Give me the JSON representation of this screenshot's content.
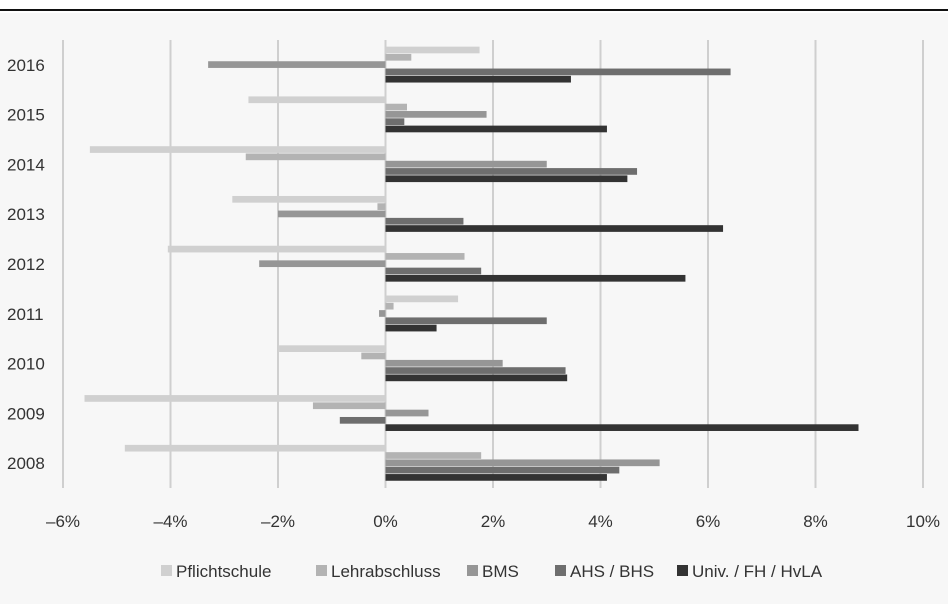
{
  "chart_data": {
    "type": "bar",
    "orientation": "horizontal",
    "categories": [
      "2016",
      "2015",
      "2014",
      "2013",
      "2012",
      "2011",
      "2010",
      "2009",
      "2008"
    ],
    "series": [
      {
        "name": "Pflichtschule",
        "color": "#d0d0d0",
        "values": [
          1.75,
          -2.55,
          -5.5,
          -2.85,
          -4.05,
          1.35,
          -1.98,
          -5.6,
          -4.85
        ]
      },
      {
        "name": "Lehrabschluss",
        "color": "#b3b3b3",
        "values": [
          0.48,
          0.4,
          -2.6,
          -0.15,
          1.47,
          0.15,
          -0.45,
          -1.35,
          1.78
        ]
      },
      {
        "name": "BMS",
        "color": "#969696",
        "values": [
          -3.3,
          1.88,
          3.0,
          -2.0,
          -2.35,
          -0.12,
          2.18,
          0.8,
          5.1
        ]
      },
      {
        "name": "AHS / BHS",
        "color": "#6e6e6e",
        "values": [
          6.42,
          0.35,
          4.68,
          1.45,
          1.78,
          3.0,
          3.35,
          -0.85,
          4.35
        ]
      },
      {
        "name": "Univ. / FH / HvLA",
        "color": "#333333",
        "values": [
          3.45,
          4.12,
          4.5,
          6.28,
          5.58,
          0.95,
          3.38,
          8.8,
          4.12
        ]
      }
    ],
    "x_ticks": [
      "–6%",
      "–4%",
      "–2%",
      "0%",
      "2%",
      "4%",
      "6%",
      "8%",
      "10%"
    ],
    "x_tick_values": [
      -6,
      -4,
      -2,
      0,
      2,
      4,
      6,
      8,
      10
    ],
    "xlim": [
      -6,
      10
    ],
    "xlabel": "",
    "ylabel": "",
    "grid": "vertical",
    "legend_position": "bottom"
  }
}
